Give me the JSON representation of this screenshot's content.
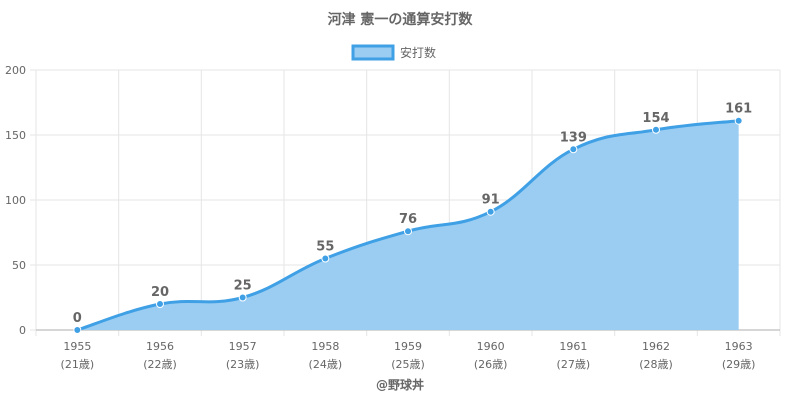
{
  "chart_data": {
    "type": "area",
    "title": "河津 憲一の通算安打数",
    "legend": {
      "label": "安打数",
      "position": "top"
    },
    "categories": [
      [
        "1955",
        "(21歳)"
      ],
      [
        "1956",
        "(22歳)"
      ],
      [
        "1957",
        "(23歳)"
      ],
      [
        "1958",
        "(24歳)"
      ],
      [
        "1959",
        "(25歳)"
      ],
      [
        "1960",
        "(26歳)"
      ],
      [
        "1961",
        "(27歳)"
      ],
      [
        "1962",
        "(28歳)"
      ],
      [
        "1963",
        "(29歳)"
      ]
    ],
    "series": [
      {
        "name": "安打数",
        "values": [
          0,
          20,
          25,
          55,
          76,
          91,
          139,
          154,
          161
        ]
      }
    ],
    "ylim": [
      0,
      200
    ],
    "yticks": [
      0,
      50,
      100,
      150,
      200
    ],
    "grid": true,
    "colors": {
      "line": "#3fa0e5",
      "fill": "#9bcdf3",
      "grid": "#e5e5e5",
      "text": "#666666"
    },
    "credit": "@野球丼"
  }
}
